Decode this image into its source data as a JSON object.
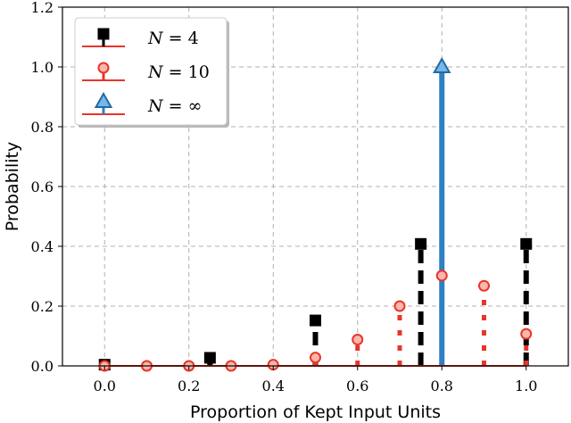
{
  "chart_data": {
    "type": "stem",
    "title": "",
    "xlabel": "Proportion of Kept Input Units",
    "ylabel": "Probability",
    "xlim": [
      -0.1,
      1.1
    ],
    "ylim": [
      0.0,
      1.2
    ],
    "xticks": [
      0.0,
      0.2,
      0.4,
      0.6,
      0.8,
      1.0
    ],
    "xtick_labels": [
      "0.0",
      "0.2",
      "0.4",
      "0.6",
      "0.8",
      "1.0"
    ],
    "yticks": [
      0.0,
      0.2,
      0.4,
      0.6,
      0.8,
      1.0,
      1.2
    ],
    "ytick_labels": [
      "0.0",
      "0.2",
      "0.4",
      "0.6",
      "0.8",
      "1.0",
      "1.2"
    ],
    "grid": true,
    "legend_position": "top-left",
    "baseline_color": "#e8352a",
    "series": [
      {
        "name": "N = 4",
        "legend_label": {
          "var": "N",
          "op": " = ",
          "val": "4"
        },
        "marker": "square",
        "line_style": "dashed",
        "color": "#000000",
        "x": [
          0.0,
          0.25,
          0.5,
          0.75,
          1.0
        ],
        "y": [
          0.004,
          0.027,
          0.152,
          0.408,
          0.408
        ]
      },
      {
        "name": "N = 10",
        "legend_label": {
          "var": "N",
          "op": " = ",
          "val": "10"
        },
        "marker": "circle",
        "line_style": "dotted",
        "color": "#e8352a",
        "x": [
          0.0,
          0.1,
          0.2,
          0.3,
          0.4,
          0.5,
          0.6,
          0.7,
          0.8,
          0.9,
          1.0
        ],
        "y": [
          0.0,
          0.0,
          0.0,
          0.0,
          0.004,
          0.028,
          0.088,
          0.2,
          0.302,
          0.268,
          0.107
        ]
      },
      {
        "name": "N = ∞",
        "legend_label": {
          "var": "N",
          "op": " = ",
          "val": "∞"
        },
        "marker": "triangle",
        "line_style": "solid",
        "color": "#2f7fc1",
        "x": [
          0.8
        ],
        "y": [
          1.0
        ]
      }
    ]
  }
}
